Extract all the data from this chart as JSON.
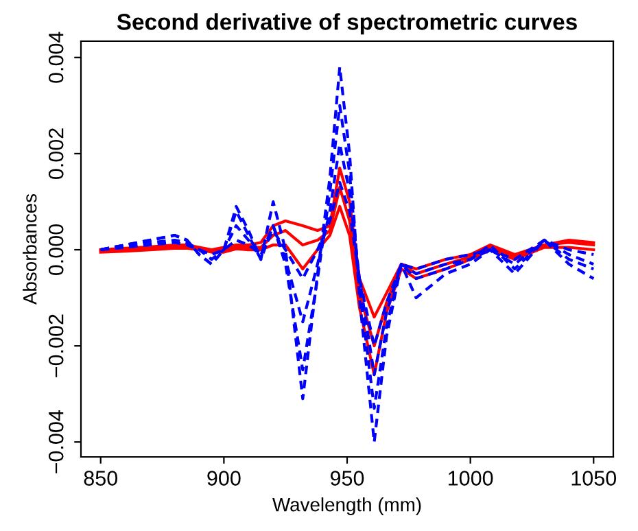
{
  "chart_data": {
    "type": "line",
    "title": "Second derivative of spectrometric curves",
    "xlabel": "Wavelength (mm)",
    "ylabel": "Absorbances",
    "x": [
      850,
      860,
      870,
      880,
      885,
      890,
      895,
      900,
      905,
      910,
      915,
      920,
      925,
      932,
      938,
      943,
      947,
      951,
      955,
      961,
      966,
      972,
      978,
      990,
      1000,
      1008,
      1018,
      1030,
      1040,
      1050
    ],
    "series": [
      {
        "color": "#ff0000",
        "line_style": "solid",
        "values": [
          0,
          3e-05,
          6e-05,
          0.0001,
          0.0001,
          5e-05,
          0,
          5e-05,
          0.0001,
          0.0001,
          0.00015,
          0.0005,
          0.0006,
          0.0005,
          0.0004,
          0.0005,
          0.0017,
          0.001,
          -0.0006,
          -0.0014,
          -0.0009,
          -0.0003,
          -0.0004,
          -0.0002,
          -0.0001,
          0.0001,
          -0.0001,
          0.0001,
          0.0002,
          0.00015
        ]
      },
      {
        "color": "#ff0000",
        "line_style": "solid",
        "values": [
          0,
          0,
          3e-05,
          6e-05,
          6e-05,
          3e-05,
          -2e-05,
          0,
          5e-05,
          5e-05,
          5e-05,
          0.0003,
          0.0004,
          0.0001,
          0.0002,
          0.0004,
          0.0013,
          0.0006,
          -0.0009,
          -0.002,
          -0.0011,
          -0.0003,
          -0.0005,
          -0.0003,
          -0.00015,
          5e-05,
          -0.00015,
          0.0001,
          0.00015,
          0.0001
        ]
      },
      {
        "color": "#ff0000",
        "line_style": "solid",
        "values": [
          -5e-05,
          -3e-05,
          0,
          3e-05,
          3e-05,
          0,
          -5e-05,
          -5e-05,
          2e-05,
          0,
          0,
          0.0001,
          0.0001,
          -0.0004,
          0,
          0.0003,
          0.0009,
          0.0003,
          -0.0012,
          -0.0026,
          -0.0013,
          -0.0004,
          -0.0006,
          -0.0004,
          -0.0002,
          0,
          -0.0002,
          5e-05,
          5e-05,
          0
        ]
      },
      {
        "color": "#0000ff",
        "line_style": "dashed",
        "values": [
          0,
          0.0001,
          0.0002,
          0.0003,
          0.0002,
          -0.0001,
          -0.0003,
          0,
          0.0009,
          0.0004,
          -0.0002,
          0.001,
          0,
          -0.0031,
          -0.0005,
          0.0015,
          0.0038,
          0.002,
          -0.001,
          -0.004,
          -0.0018,
          -0.0003,
          -0.001,
          -0.0005,
          -0.0003,
          0,
          -0.0005,
          0.0002,
          -0.0003,
          -0.0006
        ]
      },
      {
        "color": "#0000ff",
        "line_style": "dashed",
        "values": [
          0,
          0.0001,
          0.0002,
          0.0003,
          0.0002,
          -0.0001,
          -0.0003,
          0,
          0.0008,
          0.0003,
          -0.0002,
          0.0005,
          -0.0003,
          -0.0025,
          -0.0006,
          0.0012,
          0.003,
          0.0016,
          -0.0008,
          -0.0033,
          -0.0016,
          -0.0003,
          -0.0006,
          -0.0004,
          -0.0002,
          0.0001,
          -0.0004,
          0.0002,
          -0.0002,
          -0.0004
        ]
      },
      {
        "color": "#0000ff",
        "line_style": "dashed",
        "values": [
          0,
          0.0001,
          0.00015,
          0.0002,
          0.00015,
          0,
          -0.0002,
          0,
          0.0005,
          0.0002,
          -0.0001,
          0.0005,
          -0.0002,
          -0.0015,
          -0.0003,
          0.0008,
          0.0022,
          0.0012,
          -0.0006,
          -0.0026,
          -0.0013,
          -0.0003,
          -0.0005,
          -0.0003,
          -0.0002,
          0,
          -0.0003,
          0.0002,
          -0.0001,
          -0.0003
        ]
      },
      {
        "color": "#0000ff",
        "line_style": "dashed",
        "values": [
          0,
          5e-05,
          0.0001,
          0.00015,
          0.0001,
          0,
          -0.0001,
          0,
          0.0002,
          0.0001,
          -0.0001,
          0.0004,
          0,
          -0.0006,
          0,
          0.0006,
          0.0014,
          0.0008,
          -0.0006,
          -0.002,
          -0.0011,
          -0.0003,
          -0.0004,
          -0.0002,
          -0.0001,
          0,
          -0.0002,
          0.0002,
          0,
          -0.0001
        ]
      }
    ],
    "xlim": [
      842,
      1058
    ],
    "ylim": [
      -0.00431,
      0.00434
    ],
    "xticks": [
      850,
      900,
      950,
      1000,
      1050
    ],
    "yticks": [
      {
        "value": -0.004,
        "label": "−0.004"
      },
      {
        "value": -0.002,
        "label": "−0.002"
      },
      {
        "value": 0,
        "label": "0.000"
      },
      {
        "value": 0.002,
        "label": "0.002"
      },
      {
        "value": 0.004,
        "label": "0.004"
      }
    ],
    "grid": false,
    "legend": false
  }
}
